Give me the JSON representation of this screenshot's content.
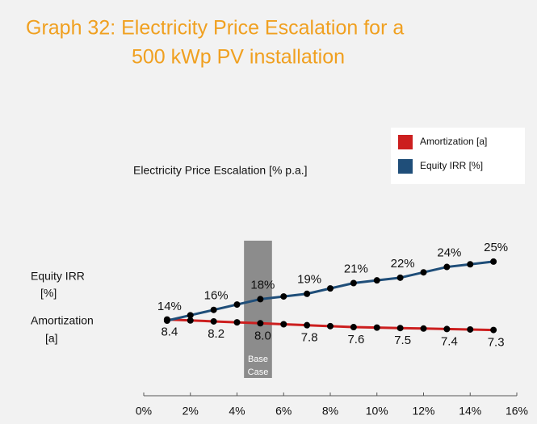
{
  "chart_data": {
    "type": "line",
    "title": [
      "Graph 32: Electricity Price Escalation for a",
      "500 kWp PV installation"
    ],
    "x_label": "Electricity Price Escalation [% p.a.]",
    "y_label": [
      "Equity IRR",
      "[%]"
    ],
    "y2_label": [
      "Amortization",
      "[a]"
    ],
    "x": [
      1,
      2,
      3,
      4,
      5,
      6,
      7,
      8,
      9,
      10,
      11,
      12,
      13,
      14,
      15
    ],
    "xlim": [
      0,
      16
    ],
    "xticks": [
      {
        "value": 0,
        "label": "0%"
      },
      {
        "value": 2,
        "label": "2%"
      },
      {
        "value": 4,
        "label": "4%"
      },
      {
        "value": 6,
        "label": "6%"
      },
      {
        "value": 8,
        "label": "8%"
      },
      {
        "value": 10,
        "label": "10%"
      },
      {
        "value": 12,
        "label": "12%"
      },
      {
        "value": 14,
        "label": "14%"
      },
      {
        "value": 16,
        "label": "16%"
      }
    ],
    "ylim": [
      0,
      28.6
    ],
    "y2lim": [
      0.4,
      16.5
    ],
    "legend": "top-right",
    "band": {
      "x": [
        4.3,
        5.5
      ],
      "label": [
        "Base",
        "Case"
      ],
      "color": "#8c8c8c"
    },
    "series": [
      {
        "name": "Amortization [a]",
        "color": "#cc1f1f",
        "axis": "y2",
        "label_side": "below",
        "values": [
          8.4,
          8.3,
          8.2,
          8.1,
          8.0,
          7.9,
          7.8,
          7.7,
          7.6,
          7.55,
          7.5,
          7.45,
          7.4,
          7.35,
          7.3
        ],
        "value_labels": [
          "8.4",
          null,
          "8.2",
          null,
          "8.0",
          null,
          "7.8",
          null,
          "7.6",
          null,
          "7.5",
          null,
          "7.4",
          null,
          "7.3"
        ]
      },
      {
        "name": "Equity IRR [%]",
        "color": "#1f4e79",
        "axis": "y",
        "label_side": "above",
        "values": [
          14,
          15,
          16,
          17,
          18,
          18.5,
          19,
          20,
          21,
          21.5,
          22,
          23,
          24,
          24.5,
          25
        ],
        "value_labels": [
          "14%",
          null,
          "16%",
          null,
          "18%",
          null,
          "19%",
          null,
          "21%",
          null,
          "22%",
          null,
          "24%",
          null,
          "25%"
        ]
      }
    ]
  }
}
